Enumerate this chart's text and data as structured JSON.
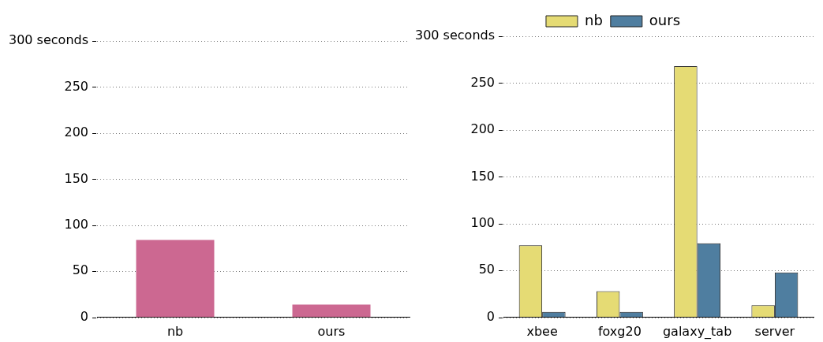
{
  "chart_data": [
    {
      "type": "bar",
      "categories": [
        "nb",
        "ours"
      ],
      "values": [
        84,
        14
      ],
      "color": "#cc6891",
      "ylim": [
        0,
        300
      ],
      "yticks": [
        0,
        50,
        100,
        150,
        200,
        250,
        {
          "value": 300,
          "label": "300 seconds"
        }
      ],
      "grid": "y",
      "legend": false
    },
    {
      "type": "bar",
      "categories": [
        "xbee",
        "foxg20",
        "galaxy_tab",
        "server"
      ],
      "series": [
        {
          "name": "nb",
          "color": "#e5db74",
          "values": [
            77,
            28,
            268,
            13
          ]
        },
        {
          "name": "ours",
          "color": "#4f7ea0",
          "values": [
            6,
            6,
            79,
            48
          ]
        }
      ],
      "ylim": [
        0,
        300
      ],
      "yticks": [
        0,
        50,
        100,
        150,
        200,
        250,
        {
          "value": 300,
          "label": "300 seconds"
        }
      ],
      "grid": "y",
      "legend": "top"
    }
  ]
}
